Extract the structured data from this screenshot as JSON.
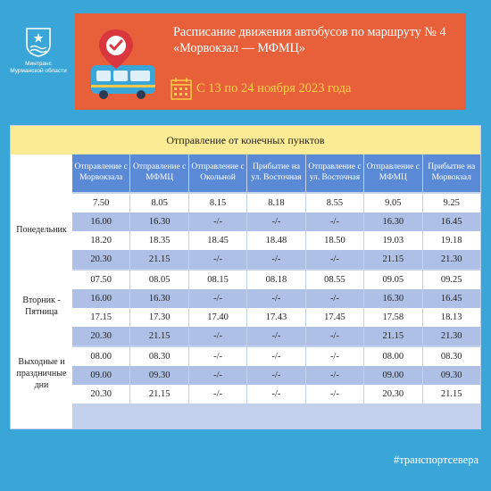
{
  "org": {
    "line1": "Минтранс",
    "line2": "Мурманской области"
  },
  "header": {
    "title_line1": "Расписание движения автобусов по маршруту № 4",
    "title_line2": "«Морвокзал — МФМЦ»",
    "dates": "С 13 по 24 ноября 2023 года"
  },
  "table": {
    "band": "Отправление от конечных пунктов",
    "columns": [
      "Отправление с Морвокзала",
      "Отправление с МФМЦ",
      "Отправление с Окольной",
      "Прибытие на ул. Восточная",
      "Отправление с ул. Восточная",
      "Отправление с МФМЦ",
      "Прибытие на Морвокзал"
    ],
    "groups": [
      {
        "label": "Понедельник",
        "rows": [
          [
            "7.50",
            "8.05",
            "8.15",
            "8.18",
            "8.55",
            "9.05",
            "9.25"
          ],
          [
            "16.00",
            "16.30",
            "-/-",
            "-/-",
            "-/-",
            "16.30",
            "16.45"
          ],
          [
            "18.20",
            "18.35",
            "18.45",
            "18.48",
            "18.50",
            "19.03",
            "19.18"
          ],
          [
            "20.30",
            "21.15",
            "-/-",
            "-/-",
            "-/-",
            "21.15",
            "21.30"
          ]
        ]
      },
      {
        "label": "Вторник - Пятница",
        "rows": [
          [
            "07.50",
            "08.05",
            "08.15",
            "08.18",
            "08.55",
            "09.05",
            "09.25"
          ],
          [
            "16.00",
            "16.30",
            "-/-",
            "-/-",
            "-/-",
            "16.30",
            "16.45"
          ],
          [
            "17.15",
            "17.30",
            "17.40",
            "17.43",
            "17.45",
            "17.58",
            "18.13"
          ],
          [
            "20.30",
            "21.15",
            "-/-",
            "-/-",
            "-/-",
            "21.15",
            "21.30"
          ]
        ]
      },
      {
        "label": "Выходные и праздничные дни",
        "rows": [
          [
            "08.00",
            "08.30",
            "-/-",
            "-/-",
            "-/-",
            "08.00",
            "08.30"
          ],
          [
            "09.00",
            "09.30",
            "-/-",
            "-/-",
            "-/-",
            "09.00",
            "09.30"
          ],
          [
            "20.30",
            "21.15",
            "-/-",
            "-/-",
            "-/-",
            "20.30",
            "21.15"
          ]
        ]
      }
    ]
  },
  "hashtag": "#транспортсевера"
}
